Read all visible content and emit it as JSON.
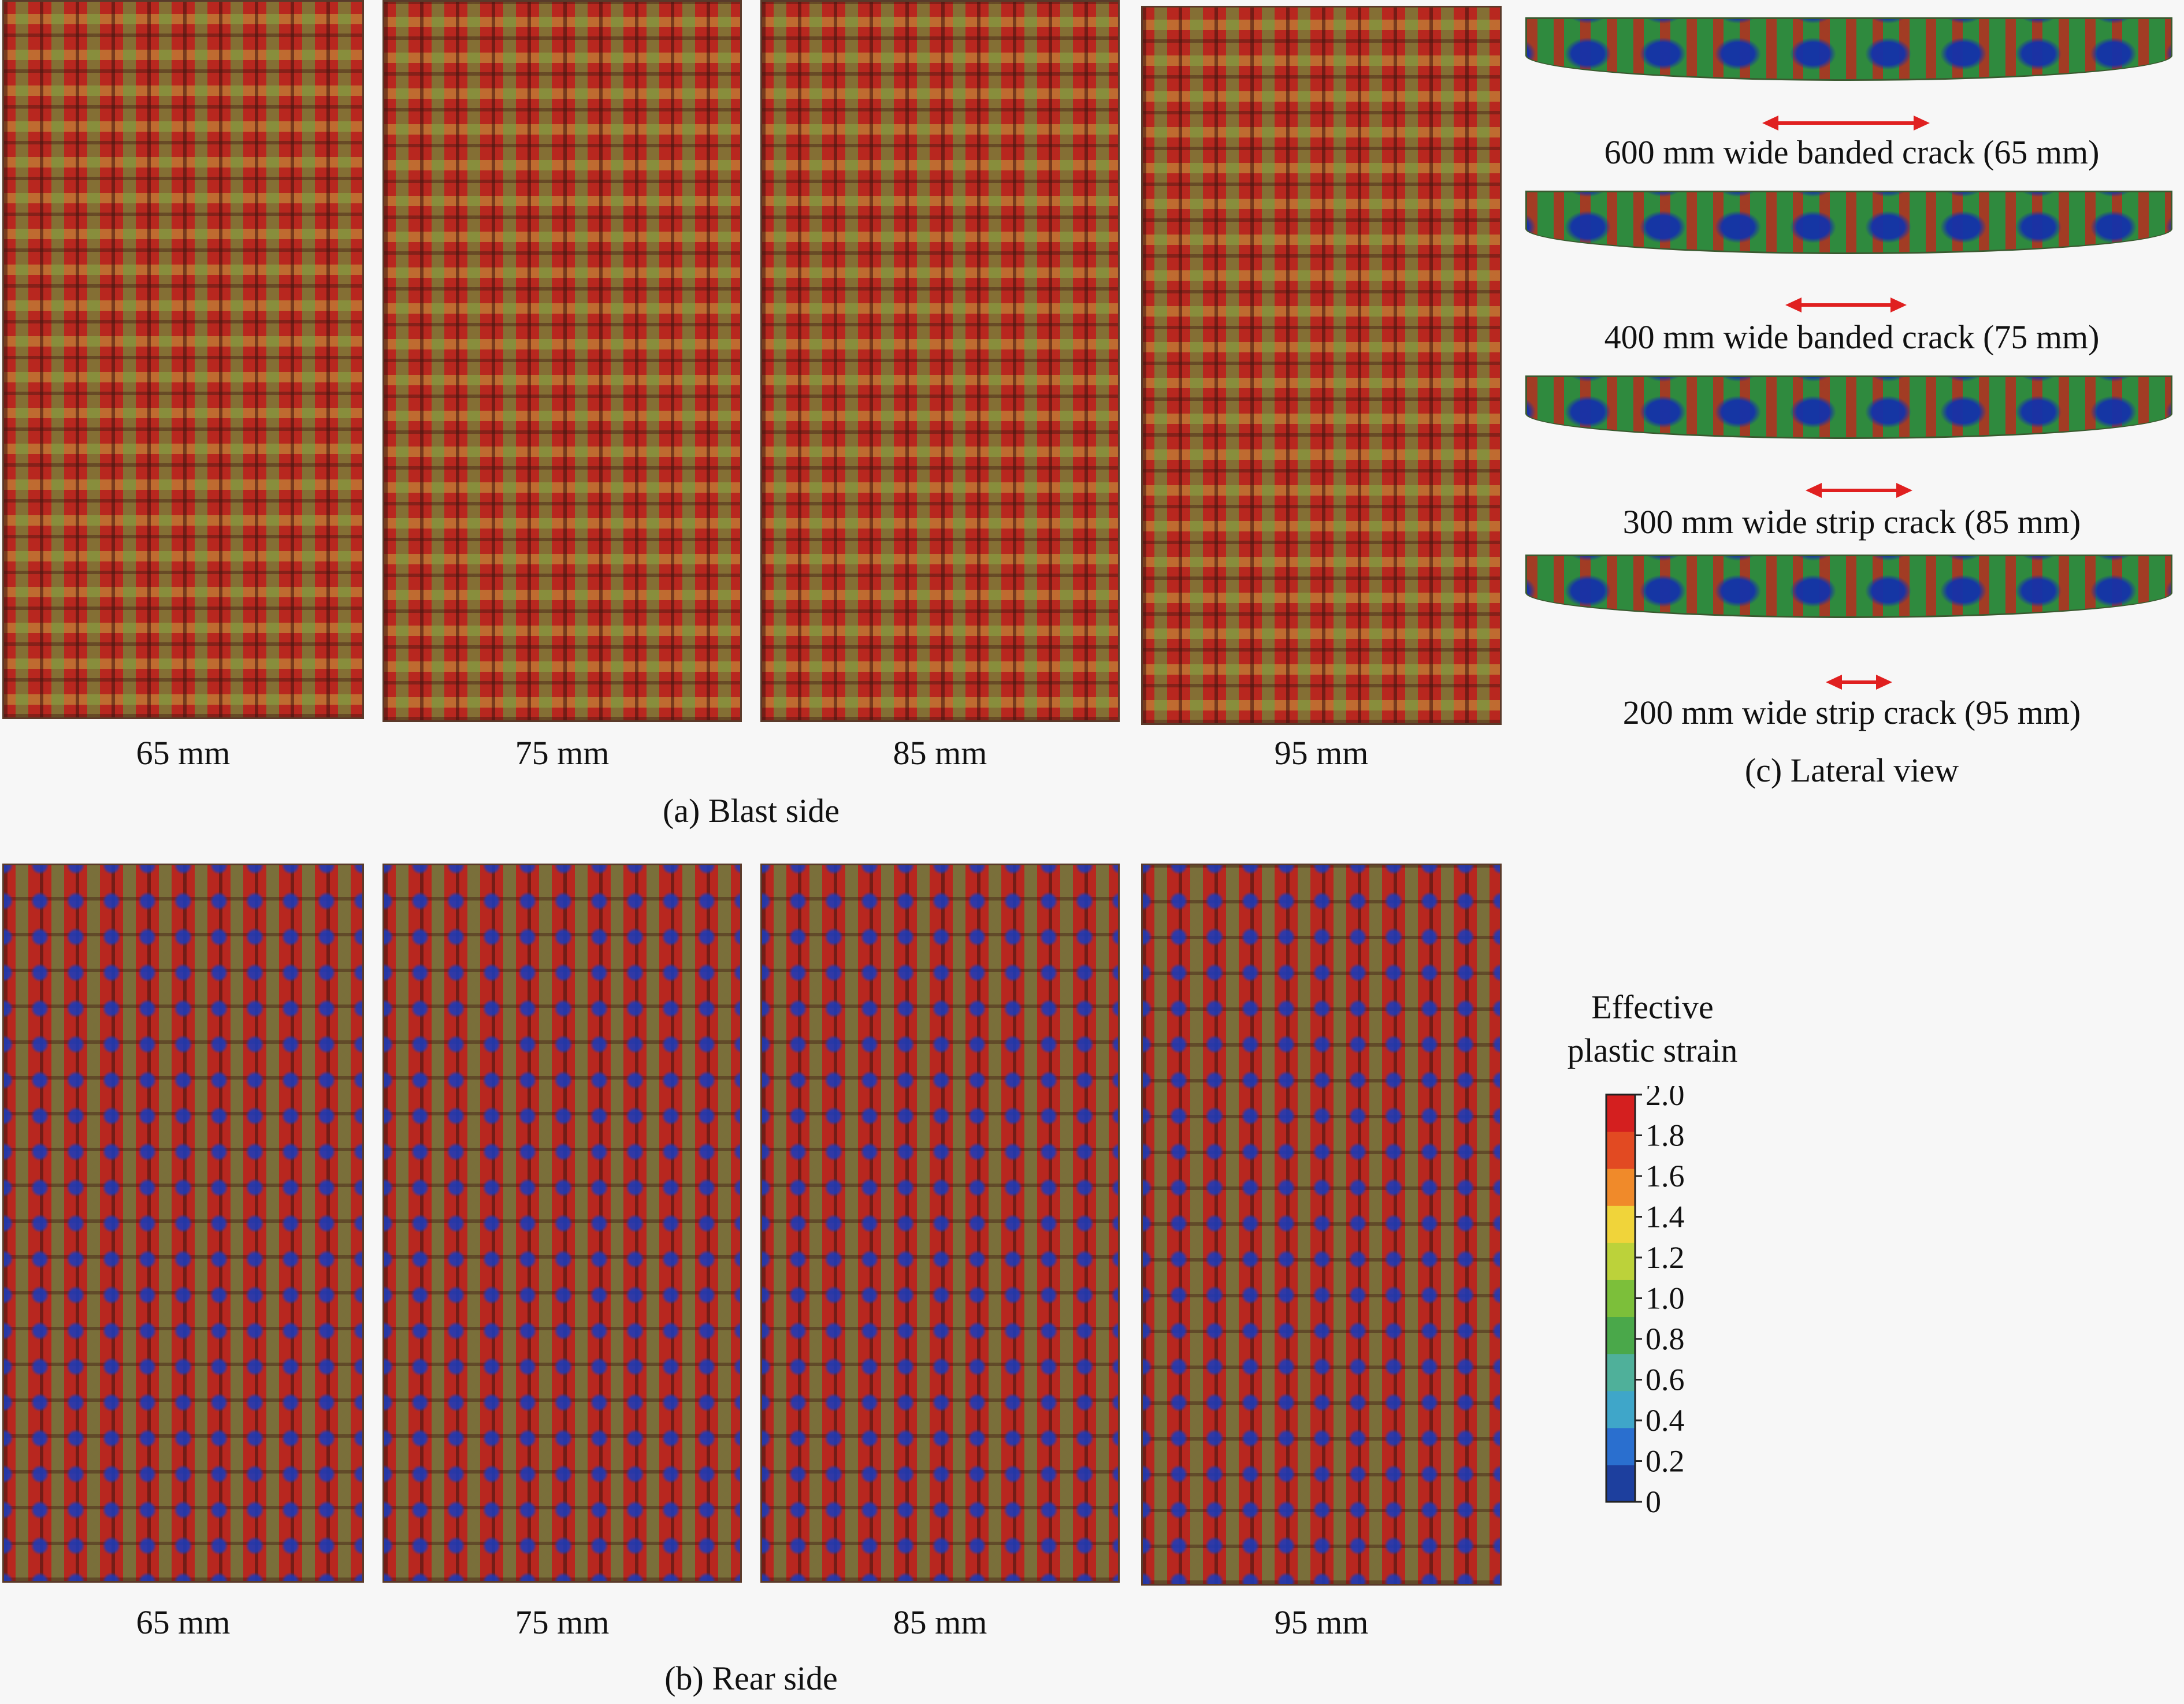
{
  "blast_side": {
    "panel_labels": [
      "65 mm",
      "75 mm",
      "85 mm",
      "95 mm"
    ],
    "caption": "(a) Blast side"
  },
  "rear_side": {
    "panel_labels": [
      "65 mm",
      "75 mm",
      "85 mm",
      "95 mm"
    ],
    "caption": "(b) Rear side"
  },
  "lateral_view": {
    "caption": "(c) Lateral view",
    "crack_labels": [
      "600 mm wide banded crack (65 mm)",
      "400 mm wide banded crack (75 mm)",
      "300 mm wide strip crack (85 mm)",
      "200 mm wide strip crack (95 mm)"
    ]
  },
  "legend": {
    "title_line1": "Effective",
    "title_line2": "plastic strain",
    "ticks": [
      "2.0",
      "1.8",
      "1.6",
      "1.4",
      "1.2",
      "1.0",
      "0.8",
      "0.6",
      "0.4",
      "0.2",
      "0"
    ],
    "colors": [
      "#1d3f9e",
      "#2a6fcf",
      "#3fa6c9",
      "#4fb09a",
      "#4aa84a",
      "#7cbf3a",
      "#bcd23a",
      "#f0d43a",
      "#f08a2a",
      "#e24a22",
      "#d41f1f"
    ]
  },
  "colors": {
    "arrow": "#e02020",
    "plastic_red": "#b8271f",
    "elastic_blue": "#1d3f9e"
  }
}
